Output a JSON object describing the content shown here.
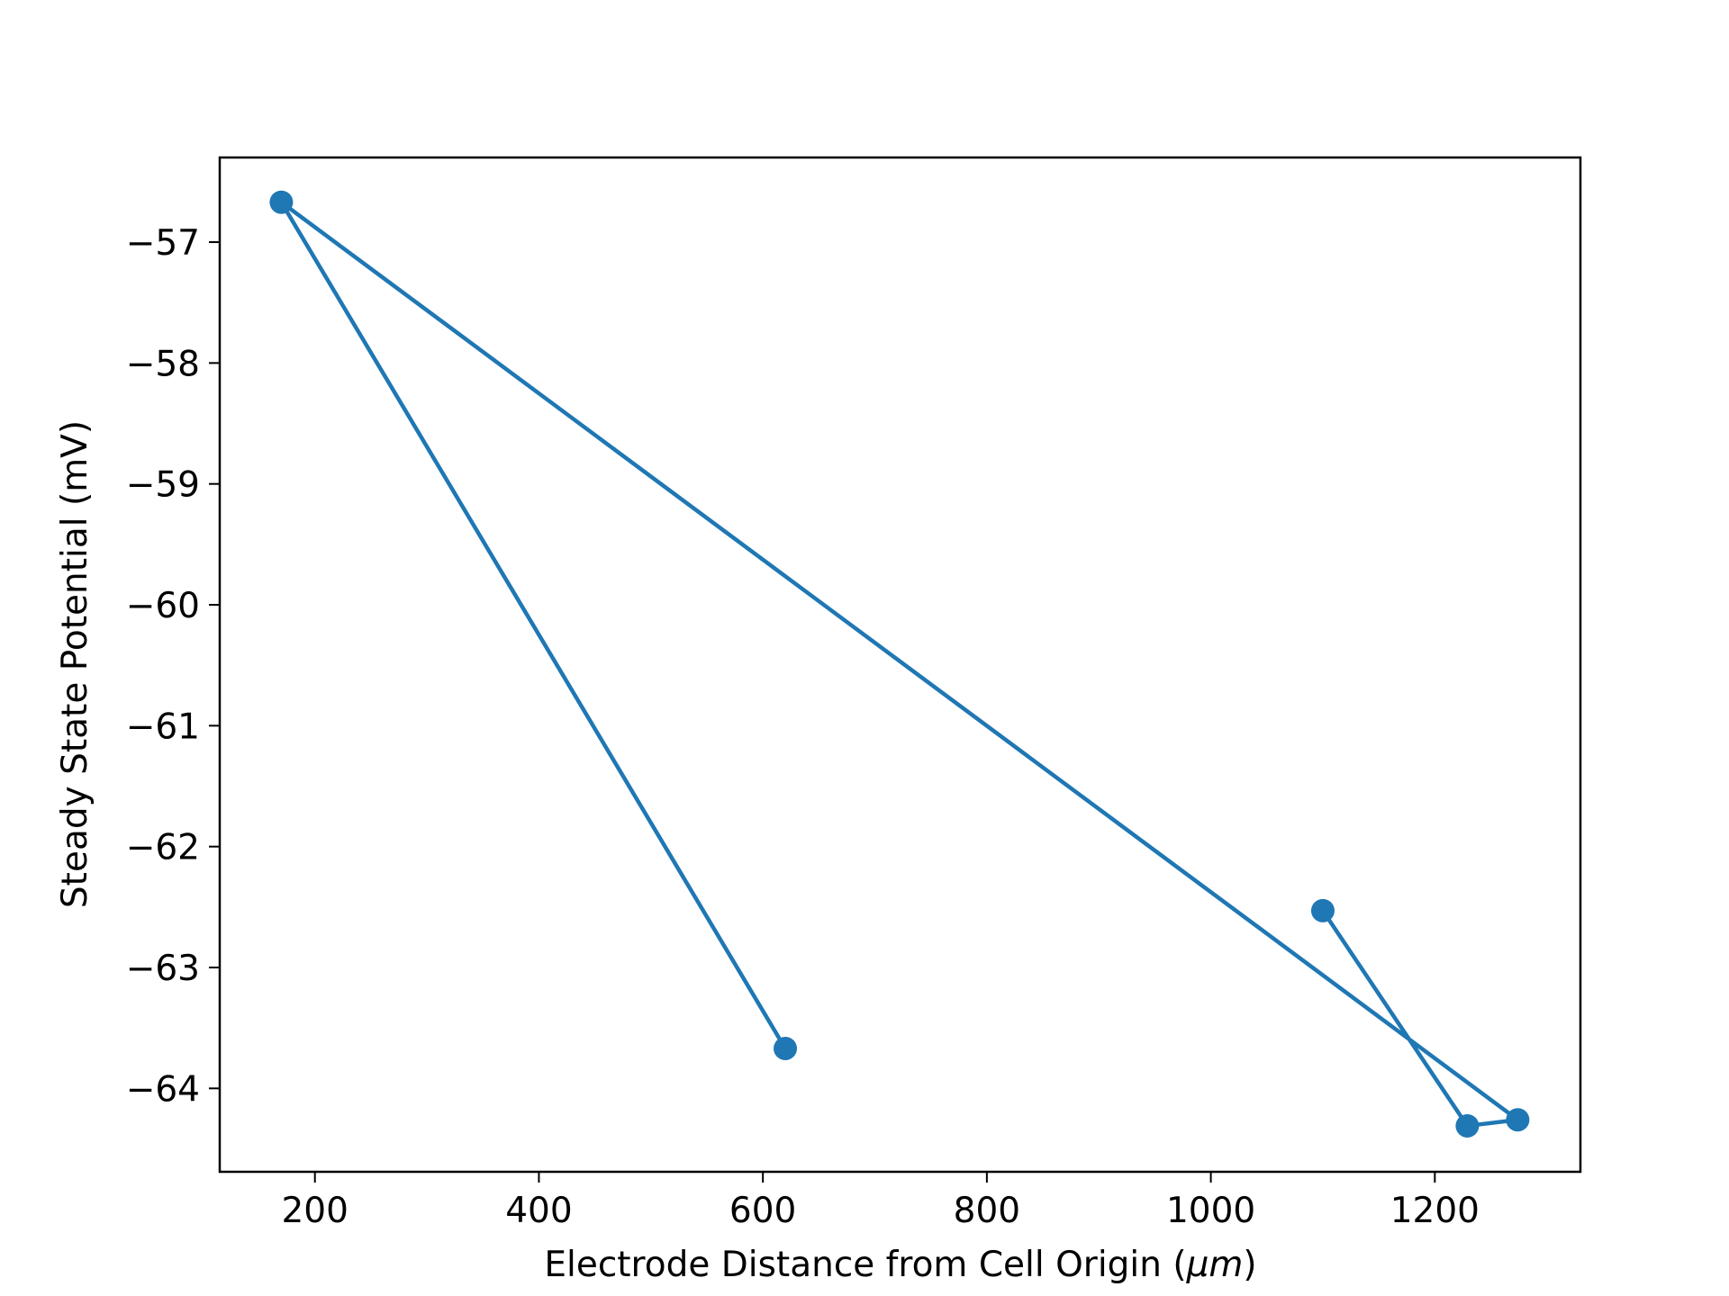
{
  "chart_data": {
    "type": "line",
    "title": "",
    "xlabel": "Electrode Distance from Cell Origin (",
    "xlabel_unit": "μm",
    "xlabel_suffix": ")",
    "ylabel": "Steady State Potential (mV)",
    "xlim": [
      115,
      1330
    ],
    "ylim": [
      -64.69,
      -56.3
    ],
    "xticks": [
      200,
      400,
      600,
      800,
      1000,
      1200
    ],
    "xtick_labels": [
      "200",
      "400",
      "600",
      "800",
      "1000",
      "1200"
    ],
    "yticks": [
      -57,
      -58,
      -59,
      -60,
      -61,
      -62,
      -63,
      -64
    ],
    "ytick_labels": [
      "−57",
      "−58",
      "−59",
      "−60",
      "−61",
      "−62",
      "−63",
      "−64"
    ],
    "grid": false,
    "series": [
      {
        "color": "#1f77b4",
        "marker": "circle",
        "points": [
          {
            "x": 620,
            "y": -63.67
          },
          {
            "x": 170,
            "y": -56.67
          },
          {
            "x": 1274,
            "y": -64.26
          },
          {
            "x": 1229,
            "y": -64.31
          },
          {
            "x": 1100,
            "y": -62.53
          }
        ]
      }
    ]
  }
}
